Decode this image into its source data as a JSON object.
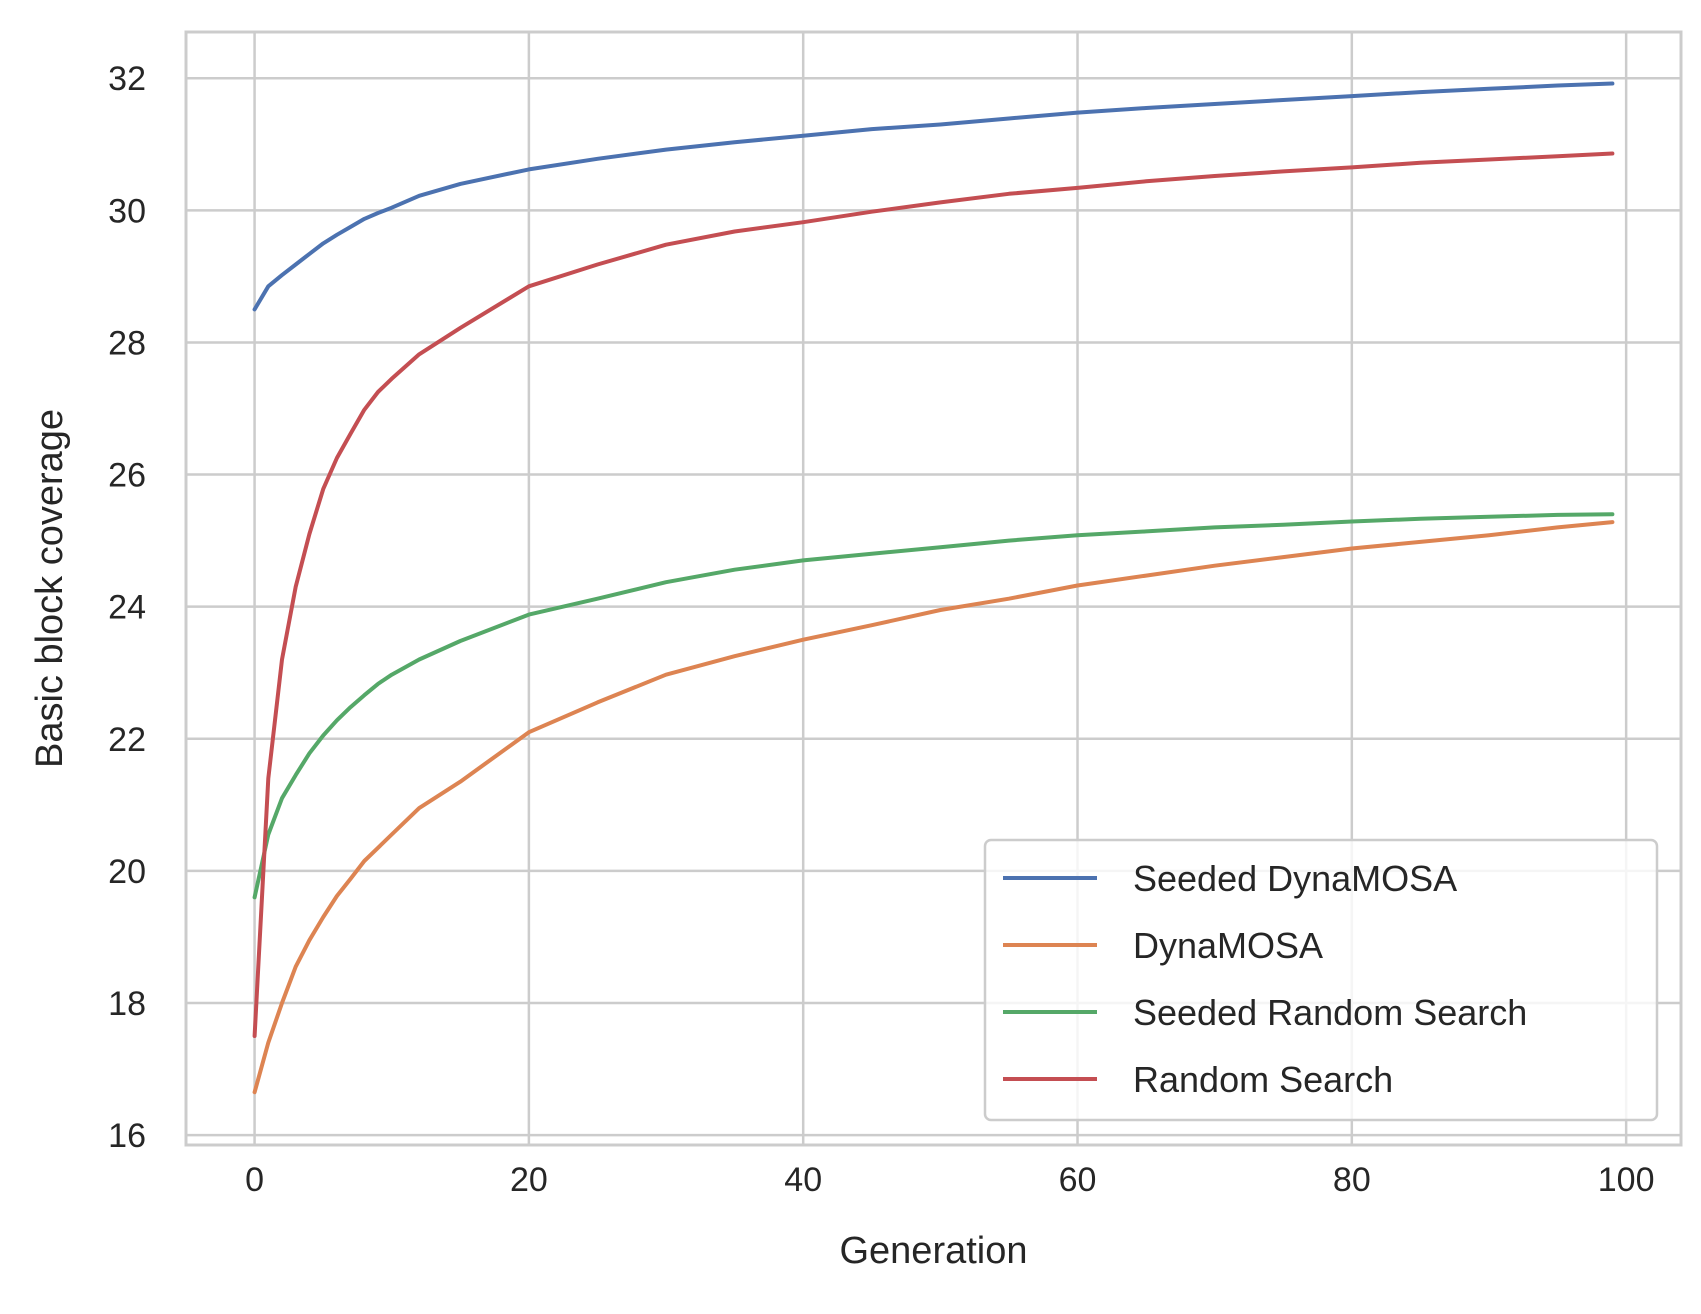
{
  "chart_data": {
    "type": "line",
    "xlabel": "Generation",
    "ylabel": "Basic block coverage",
    "xlim": [
      -5,
      104
    ],
    "ylim": [
      15.85,
      32.7
    ],
    "x_ticks": [
      0,
      20,
      40,
      60,
      80,
      100
    ],
    "y_ticks": [
      16,
      18,
      20,
      22,
      24,
      26,
      28,
      30,
      32
    ],
    "x_tick_labels": [
      "0",
      "20",
      "40",
      "60",
      "80",
      "100"
    ],
    "y_tick_labels": [
      "16",
      "18",
      "20",
      "22",
      "24",
      "26",
      "28",
      "30",
      "32"
    ],
    "grid": true,
    "legend_position": "lower-right",
    "series": [
      {
        "name": "Seeded DynaMOSA",
        "color": "#4c72b0",
        "points": [
          [
            0,
            28.5
          ],
          [
            1,
            28.85
          ],
          [
            2,
            29.02
          ],
          [
            3,
            29.18
          ],
          [
            4,
            29.34
          ],
          [
            5,
            29.5
          ],
          [
            6,
            29.63
          ],
          [
            7,
            29.75
          ],
          [
            8,
            29.87
          ],
          [
            9,
            29.96
          ],
          [
            10,
            30.04
          ],
          [
            12,
            30.22
          ],
          [
            15,
            30.4
          ],
          [
            20,
            30.62
          ],
          [
            25,
            30.78
          ],
          [
            30,
            30.92
          ],
          [
            35,
            31.03
          ],
          [
            40,
            31.13
          ],
          [
            45,
            31.23
          ],
          [
            50,
            31.3
          ],
          [
            55,
            31.39
          ],
          [
            60,
            31.48
          ],
          [
            65,
            31.55
          ],
          [
            70,
            31.61
          ],
          [
            75,
            31.67
          ],
          [
            80,
            31.73
          ],
          [
            85,
            31.79
          ],
          [
            90,
            31.84
          ],
          [
            95,
            31.89
          ],
          [
            99,
            31.92
          ]
        ]
      },
      {
        "name": "DynaMOSA",
        "color": "#dd8452",
        "points": [
          [
            0,
            16.65
          ],
          [
            1,
            17.4
          ],
          [
            2,
            18.0
          ],
          [
            3,
            18.55
          ],
          [
            4,
            18.95
          ],
          [
            5,
            19.3
          ],
          [
            6,
            19.62
          ],
          [
            7,
            19.88
          ],
          [
            8,
            20.15
          ],
          [
            9,
            20.35
          ],
          [
            10,
            20.55
          ],
          [
            12,
            20.95
          ],
          [
            15,
            21.35
          ],
          [
            20,
            22.1
          ],
          [
            25,
            22.55
          ],
          [
            30,
            22.97
          ],
          [
            35,
            23.25
          ],
          [
            40,
            23.5
          ],
          [
            45,
            23.72
          ],
          [
            50,
            23.95
          ],
          [
            55,
            24.12
          ],
          [
            60,
            24.32
          ],
          [
            65,
            24.47
          ],
          [
            70,
            24.62
          ],
          [
            75,
            24.75
          ],
          [
            80,
            24.88
          ],
          [
            85,
            24.98
          ],
          [
            90,
            25.08
          ],
          [
            95,
            25.2
          ],
          [
            99,
            25.28
          ]
        ]
      },
      {
        "name": "Seeded Random Search",
        "color": "#55a868",
        "points": [
          [
            0,
            19.6
          ],
          [
            1,
            20.55
          ],
          [
            2,
            21.1
          ],
          [
            3,
            21.45
          ],
          [
            4,
            21.78
          ],
          [
            5,
            22.05
          ],
          [
            6,
            22.28
          ],
          [
            7,
            22.48
          ],
          [
            8,
            22.66
          ],
          [
            9,
            22.83
          ],
          [
            10,
            22.97
          ],
          [
            12,
            23.2
          ],
          [
            15,
            23.48
          ],
          [
            20,
            23.88
          ],
          [
            25,
            24.12
          ],
          [
            30,
            24.37
          ],
          [
            35,
            24.56
          ],
          [
            40,
            24.7
          ],
          [
            45,
            24.8
          ],
          [
            50,
            24.9
          ],
          [
            55,
            25.0
          ],
          [
            60,
            25.08
          ],
          [
            65,
            25.14
          ],
          [
            70,
            25.2
          ],
          [
            75,
            25.24
          ],
          [
            80,
            25.29
          ],
          [
            85,
            25.33
          ],
          [
            90,
            25.36
          ],
          [
            95,
            25.39
          ],
          [
            99,
            25.4
          ]
        ]
      },
      {
        "name": "Random Search",
        "color": "#c44e52",
        "points": [
          [
            0,
            17.5
          ],
          [
            1,
            21.4
          ],
          [
            2,
            23.2
          ],
          [
            3,
            24.3
          ],
          [
            4,
            25.1
          ],
          [
            5,
            25.78
          ],
          [
            6,
            26.25
          ],
          [
            7,
            26.62
          ],
          [
            8,
            26.98
          ],
          [
            9,
            27.25
          ],
          [
            10,
            27.45
          ],
          [
            12,
            27.82
          ],
          [
            15,
            28.22
          ],
          [
            20,
            28.85
          ],
          [
            25,
            29.18
          ],
          [
            30,
            29.48
          ],
          [
            35,
            29.68
          ],
          [
            40,
            29.82
          ],
          [
            45,
            29.98
          ],
          [
            50,
            30.12
          ],
          [
            55,
            30.25
          ],
          [
            60,
            30.34
          ],
          [
            65,
            30.44
          ],
          [
            70,
            30.52
          ],
          [
            75,
            30.59
          ],
          [
            80,
            30.65
          ],
          [
            85,
            30.72
          ],
          [
            90,
            30.77
          ],
          [
            95,
            30.82
          ],
          [
            99,
            30.86
          ]
        ]
      }
    ]
  }
}
